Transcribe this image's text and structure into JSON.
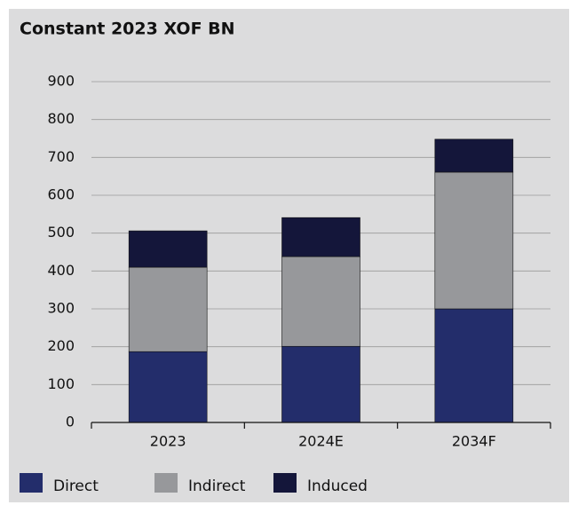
{
  "chart_data": {
    "type": "stacked_bar",
    "title": "Constant 2023 XOF BN",
    "categories": [
      "2023",
      "2024E",
      "2034F"
    ],
    "series": [
      {
        "name": "Direct",
        "color": "#232d6b",
        "values": [
          187,
          201,
          300
        ]
      },
      {
        "name": "Indirect",
        "color": "#97989b",
        "values": [
          223,
          237,
          361
        ]
      },
      {
        "name": "Induced",
        "color": "#14163a",
        "values": [
          96,
          103,
          87
        ]
      }
    ],
    "ylim": [
      0,
      900
    ],
    "yticks": [
      0,
      100,
      200,
      300,
      400,
      500,
      600,
      700,
      800,
      900
    ],
    "grid": true
  }
}
